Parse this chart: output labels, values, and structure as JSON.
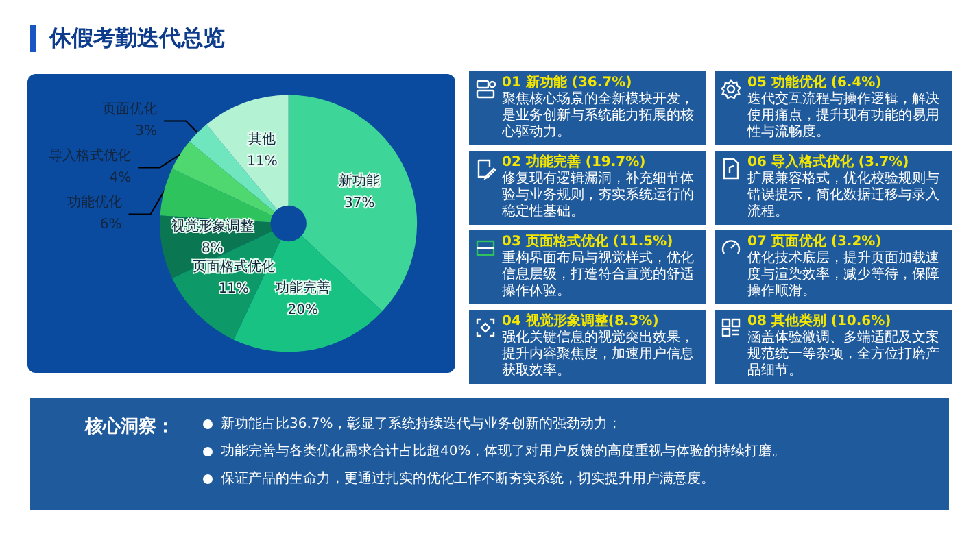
{
  "chart_data": {
    "type": "donut",
    "title": "休假考勤迭代总览",
    "categories": [
      "新功能",
      "功能完善",
      "页面格式优化",
      "视觉形象调整",
      "功能优化",
      "导入格式优化",
      "页面优化",
      "其他"
    ],
    "values": [
      37,
      20,
      11,
      8,
      6,
      4,
      3,
      11
    ],
    "value_labels": [
      "37%",
      "20%",
      "11%",
      "8%",
      "6%",
      "4%",
      "3%",
      "11%"
    ],
    "colors": [
      "#3dd598",
      "#17c283",
      "#0e9a68",
      "#0b7752",
      "#2fc35e",
      "#4fd870",
      "#6fe6bd",
      "#b4f2d4"
    ],
    "legend": false,
    "annotations": [
      "01 新功能 (36.7%)",
      "聚焦核心场景的全新模块开发，是业务创新与系统能力拓展的核心驱动力。",
      "02 功能完善 (19.7%)",
      "修复现有逻辑漏洞，补充细节体验与业务规则，夯实系统运行的稳定性基础。",
      "03 页面格式优化 (11.5%)",
      "重构界面布局与视觉样式，优化信息层级，打造符合直觉的舒适操作体验。",
      "04 视觉形象调整(8.3%)",
      "强化关键信息的视觉突出效果，提升内容聚焦度，加速用户信息获取效率。",
      "05 功能优化 (6.4%)",
      "迭代交互流程与操作逻辑，解决使用痛点，提升现有功能的易用性与流畅度。",
      "06 导入格式优化 (3.7%)",
      "扩展兼容格式，优化校验规则与错误提示，简化数据迁移与录入流程。",
      "07 页面优化 (3.2%)",
      "优化技术底层，提升页面加载速度与渲染效率，减少等待，保障操作顺滑。",
      "08 其他类别 (10.6%)",
      "涵盖体验微调、多端适配及文案规范统一等杂项，全方位打磨产品细节。",
      "核心洞察：",
      "新功能占比36.7%，彰显了系统持续迭代与业务创新的强劲动力；",
      "功能完善与各类优化需求合计占比超40%，体现了对用户反馈的高度重视与体验的持续打磨。",
      "保证产品的生命力，更通过扎实的优化工作不断夯实系统，切实提升用户满意度。"
    ]
  }
}
